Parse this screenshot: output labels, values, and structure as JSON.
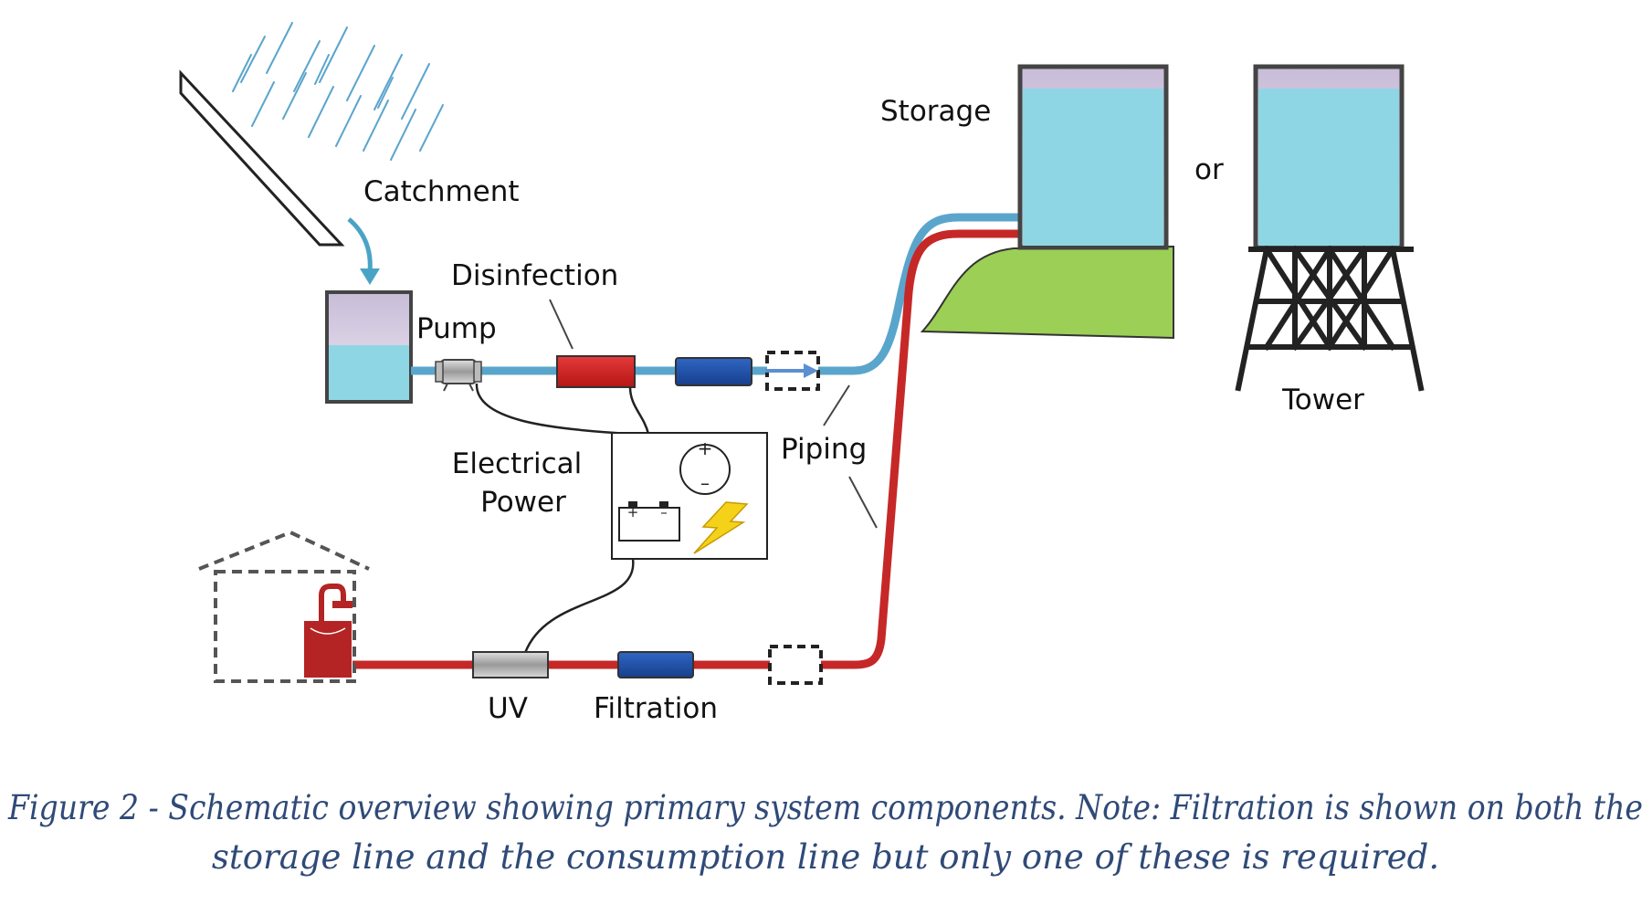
{
  "labels": {
    "catchment": "Catchment",
    "disinfection": "Disinfection",
    "pump": "Pump",
    "electrical_power_line1": "Electrical",
    "electrical_power_line2": "Power",
    "piping": "Piping",
    "storage": "Storage",
    "or": "or",
    "tower": "Tower",
    "uv": "UV",
    "filtration": "Filtration"
  },
  "caption": {
    "line1": "Figure 2 - Schematic overview showing primary system components. Note: Filtration is shown on both the",
    "line2": "storage line and the consumption line but only one of these is required."
  },
  "colors": {
    "supply_pipe": "#5aa5cc",
    "consumption_pipe": "#c62828",
    "water": "#8fd6e4",
    "tank_top": "#d8d0e4",
    "hill": "#9bcf55",
    "filter": "#1f4fa6",
    "disinfection_unit": "#d01f1f",
    "lightning": "#f5d21a",
    "caption": "#2f4a78"
  }
}
